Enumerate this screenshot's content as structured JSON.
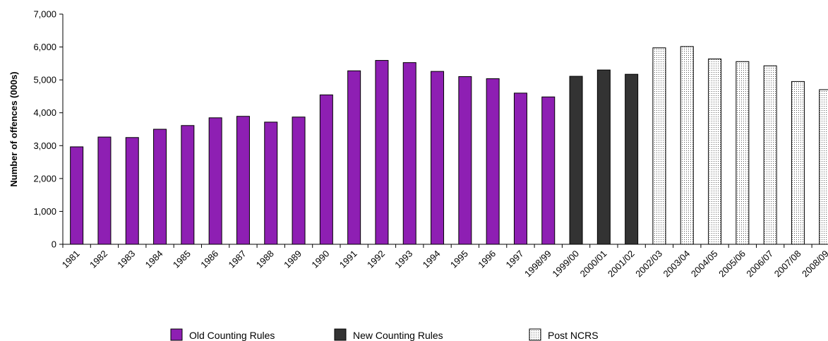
{
  "chart_data": {
    "type": "bar",
    "title": "",
    "xlabel": "",
    "ylabel": "Number of offences (000s)",
    "ylim": [
      0,
      7000
    ],
    "yticks": [
      "0",
      "1,000",
      "2,000",
      "3,000",
      "4,000",
      "5,000",
      "6,000",
      "7,000"
    ],
    "grid": false,
    "legend_position": "bottom",
    "categories": [
      "1981",
      "1982",
      "1983",
      "1984",
      "1985",
      "1986",
      "1987",
      "1988",
      "1989",
      "1990",
      "1991",
      "1992",
      "1993",
      "1994",
      "1995",
      "1996",
      "1997",
      "1998/99",
      "1999/00",
      "2000/01",
      "2001/02",
      "2002/03",
      "2003/04",
      "2004/05",
      "2005/06",
      "2006/07",
      "2007/08",
      "2008/09"
    ],
    "series": [
      {
        "name": "Old Counting Rules",
        "color": "#8e1fb3",
        "fill": "solid",
        "values": [
          2964,
          3262,
          3247,
          3499,
          3612,
          3847,
          3892,
          3716,
          3870,
          4544,
          5276,
          5592,
          5526,
          5258,
          5100,
          5037,
          4598,
          4482,
          null,
          null,
          null,
          null,
          null,
          null,
          null,
          null,
          null,
          null
        ]
      },
      {
        "name": "New Counting Rules",
        "color": "#333333",
        "fill": "solid",
        "values": [
          null,
          null,
          null,
          null,
          null,
          null,
          null,
          null,
          null,
          null,
          null,
          null,
          null,
          null,
          null,
          null,
          null,
          null,
          5109,
          5301,
          5171,
          5527,
          null,
          null,
          null,
          null,
          null,
          null
        ]
      },
      {
        "name": "Post NCRS",
        "color": "#ffffff",
        "fill": "dotted",
        "values": [
          null,
          null,
          null,
          null,
          null,
          null,
          null,
          null,
          null,
          null,
          null,
          null,
          null,
          null,
          null,
          null,
          null,
          null,
          null,
          null,
          null,
          5975,
          6014,
          5637,
          5556,
          5428,
          4951,
          4703
        ]
      }
    ]
  }
}
